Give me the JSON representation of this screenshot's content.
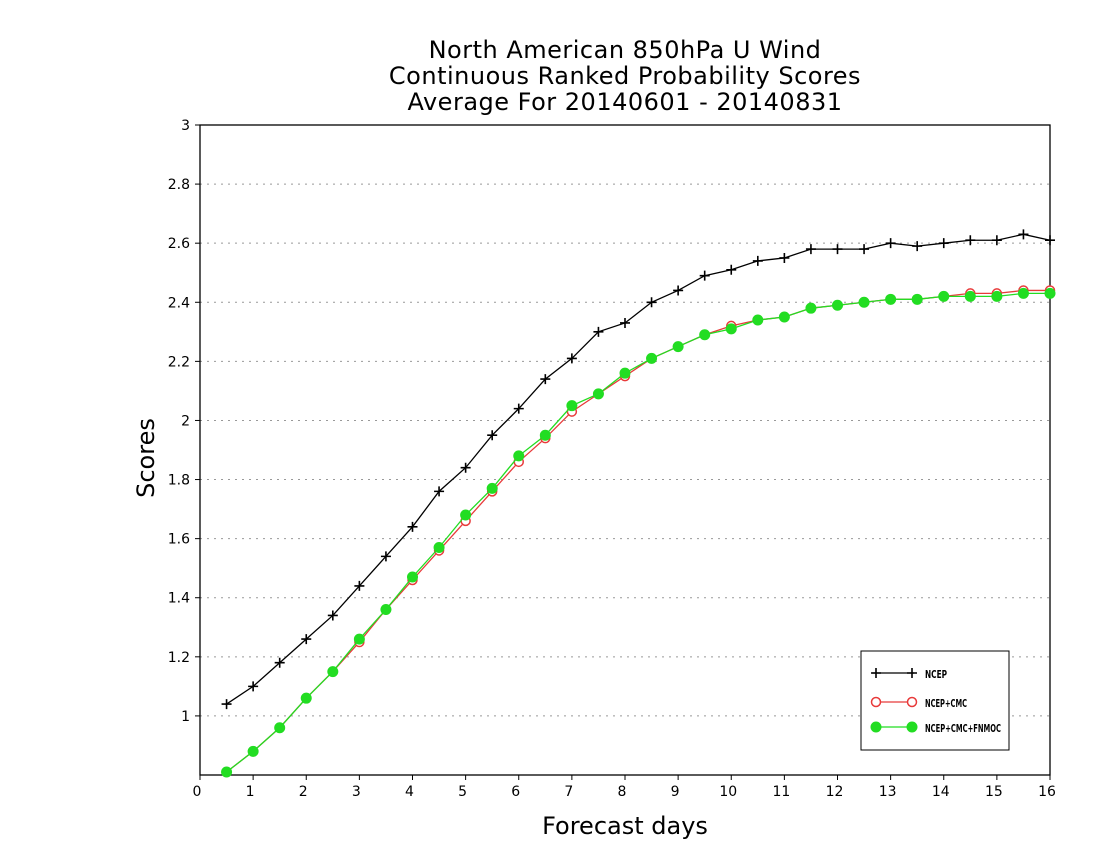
{
  "chart_data": {
    "type": "line",
    "title": [
      "North American 850hPa U Wind",
      "Continuous Ranked Probability Scores",
      "Average For 20140601 - 20140831"
    ],
    "xlabel": "Forecast days",
    "ylabel": "Scores",
    "xlim": [
      0,
      16
    ],
    "ylim": [
      0.8,
      3
    ],
    "x_ticks": [
      "0",
      "1",
      "2",
      "3",
      "4",
      "5",
      "6",
      "7",
      "8",
      "9",
      "10",
      "11",
      "12",
      "13",
      "14",
      "15",
      "16"
    ],
    "y_ticks": [
      "1",
      "1.2",
      "1.4",
      "1.6",
      "1.8",
      "2",
      "2.2",
      "2.4",
      "2.6",
      "2.8",
      "3"
    ],
    "grid": "horizontal dotted",
    "legend_position": "bottom-right",
    "x": [
      0.5,
      1,
      1.5,
      2,
      2.5,
      3,
      3.5,
      4,
      4.5,
      5,
      5.5,
      6,
      6.5,
      7,
      7.5,
      8,
      8.5,
      9,
      9.5,
      10,
      10.5,
      11,
      11.5,
      12,
      12.5,
      13,
      13.5,
      14,
      14.5,
      15,
      15.5,
      16
    ],
    "series": [
      {
        "name": "NCEP",
        "color": "#000000",
        "marker": "plus",
        "values": [
          1.04,
          1.1,
          1.18,
          1.26,
          1.34,
          1.44,
          1.54,
          1.64,
          1.76,
          1.84,
          1.95,
          2.04,
          2.14,
          2.21,
          2.3,
          2.33,
          2.4,
          2.44,
          2.49,
          2.51,
          2.54,
          2.55,
          2.58,
          2.58,
          2.58,
          2.6,
          2.59,
          2.6,
          2.61,
          2.61,
          2.63,
          2.61
        ]
      },
      {
        "name": "NCEP+CMC",
        "color": "#e83a3a",
        "marker": "open-circle",
        "values": [
          0.81,
          0.88,
          0.96,
          1.06,
          1.15,
          1.25,
          1.36,
          1.46,
          1.56,
          1.66,
          1.76,
          1.86,
          1.94,
          2.03,
          2.09,
          2.15,
          2.21,
          2.25,
          2.29,
          2.32,
          2.34,
          2.35,
          2.38,
          2.39,
          2.4,
          2.41,
          2.41,
          2.42,
          2.43,
          2.43,
          2.44,
          2.44
        ]
      },
      {
        "name": "NCEP+CMC+FNMOC",
        "color": "#22dd22",
        "marker": "filled-circle",
        "values": [
          0.81,
          0.88,
          0.96,
          1.06,
          1.15,
          1.26,
          1.36,
          1.47,
          1.57,
          1.68,
          1.77,
          1.88,
          1.95,
          2.05,
          2.09,
          2.16,
          2.21,
          2.25,
          2.29,
          2.31,
          2.34,
          2.35,
          2.38,
          2.39,
          2.4,
          2.41,
          2.41,
          2.42,
          2.42,
          2.42,
          2.43,
          2.43
        ]
      }
    ]
  }
}
